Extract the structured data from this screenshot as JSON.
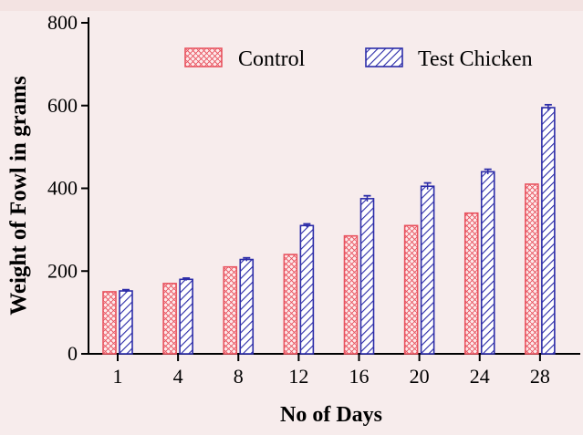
{
  "chart_data": {
    "type": "bar",
    "xlabel": "No of Days",
    "ylabel": "Weight of Fowl in grams",
    "categories": [
      "1",
      "4",
      "8",
      "12",
      "16",
      "20",
      "24",
      "28"
    ],
    "ylim": [
      0,
      800
    ],
    "yticks": [
      "0",
      "200",
      "400",
      "600",
      "800"
    ],
    "legend_position": "top-right",
    "error_bars": true,
    "series": [
      {
        "name": "Control",
        "values": [
          150,
          170,
          210,
          240,
          285,
          310,
          340,
          410
        ],
        "errors": [
          0,
          0,
          0,
          0,
          0,
          0,
          0,
          0
        ],
        "color": "#e8535f",
        "pattern": "dotted-cross"
      },
      {
        "name": "Test Chicken",
        "values": [
          152,
          180,
          228,
          310,
          375,
          405,
          440,
          595
        ],
        "errors": [
          3,
          3,
          4,
          4,
          7,
          8,
          6,
          7
        ],
        "color": "#2c2ca8",
        "pattern": "diagonal-hatch"
      }
    ]
  }
}
